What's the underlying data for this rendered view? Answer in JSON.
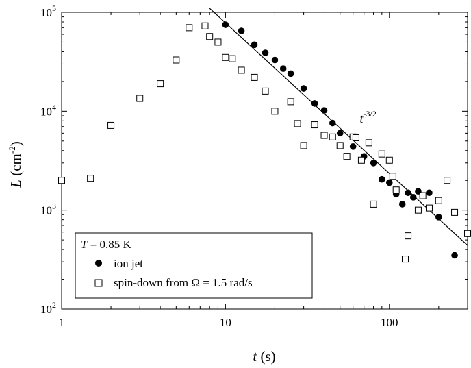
{
  "chart_data": {
    "type": "scatter",
    "x_scale": "log",
    "y_scale": "log",
    "xlim": [
      1,
      300
    ],
    "ylim": [
      100,
      100000
    ],
    "grid": false,
    "legend_placement": "bottom-left",
    "xlabel": {
      "var": "t",
      "rest": " (s)"
    },
    "ylabel": {
      "var": "L",
      "rest": " (cm",
      "sup": "-2",
      "close": ")"
    },
    "x_ticks": [
      {
        "value": 1,
        "label": "1"
      },
      {
        "value": 10,
        "label": "10"
      },
      {
        "value": 100,
        "label": "100"
      }
    ],
    "y_ticks": [
      {
        "value": 100,
        "base": "10",
        "exp": "2"
      },
      {
        "value": 1000,
        "base": "10",
        "exp": "3"
      },
      {
        "value": 10000,
        "base": "10",
        "exp": "4"
      },
      {
        "value": 100000,
        "base": "10",
        "exp": "5"
      }
    ],
    "legend": {
      "title": {
        "var": "T",
        "rest": " = 0.85 K"
      }
    },
    "annotation": {
      "base": "t",
      "sup": "-3/2",
      "x": 40,
      "y": 9000
    },
    "fit_line": {
      "x": [
        8,
        300
      ],
      "y": [
        110000,
        440
      ]
    },
    "series": [
      {
        "name": "ion jet",
        "marker": "filled-circle",
        "x": [
          10,
          12.5,
          15,
          17.5,
          20,
          22.5,
          25,
          30,
          35,
          40,
          45,
          50,
          60,
          70,
          80,
          90,
          100,
          110,
          120,
          130,
          140,
          150,
          175,
          200,
          250
        ],
        "y": [
          75000,
          65000,
          47000,
          39000,
          33000,
          27000,
          24000,
          17000,
          12000,
          10200,
          7600,
          6000,
          4400,
          3500,
          3000,
          2050,
          1900,
          1450,
          1150,
          1500,
          1350,
          1550,
          1500,
          850,
          350
        ]
      },
      {
        "name": "spin-down from Ω = 1.5 rad/s",
        "marker": "open-square",
        "x": [
          1,
          1.5,
          2,
          3,
          4,
          5,
          6,
          7.5,
          8,
          9,
          10,
          11,
          12.5,
          15,
          17.5,
          20,
          25,
          27.5,
          30,
          35,
          40,
          45,
          50,
          55,
          60,
          62.5,
          67.5,
          75,
          80,
          90,
          100,
          105,
          110,
          125,
          130,
          150,
          160,
          175,
          200,
          225,
          250,
          300
        ],
        "y": [
          2000,
          2100,
          7200,
          13500,
          19000,
          33000,
          70000,
          73000,
          57000,
          50000,
          35000,
          34000,
          26000,
          22000,
          16000,
          10000,
          12500,
          7500,
          4500,
          7300,
          5700,
          5500,
          4500,
          3500,
          5500,
          5400,
          3200,
          4800,
          1150,
          3700,
          3200,
          2200,
          1600,
          320,
          550,
          1000,
          1400,
          1050,
          1250,
          2000,
          950,
          580
        ]
      }
    ]
  }
}
